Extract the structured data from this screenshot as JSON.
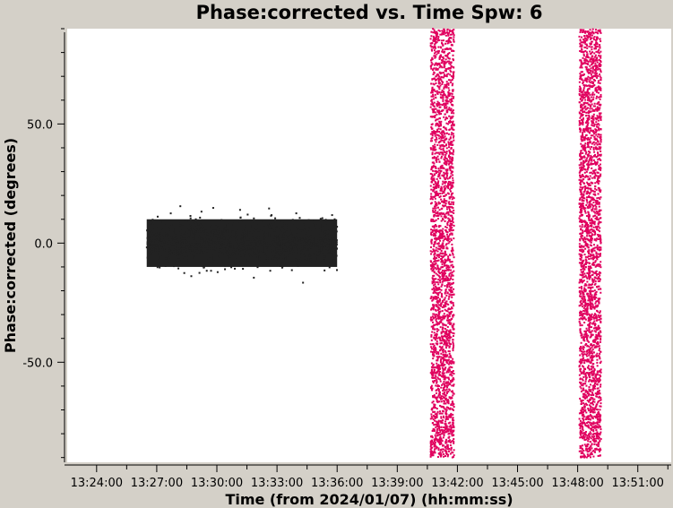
{
  "chart_data": {
    "type": "scatter",
    "title": "Phase:corrected vs. Time Spw: 6",
    "xlabel": "Time (from 2024/01/07) (hh:mm:ss)",
    "ylabel": "Phase:corrected (degrees)",
    "x_ticks": [
      "13:24:00",
      "13:27:00",
      "13:30:00",
      "13:33:00",
      "13:36:00",
      "13:39:00",
      "13:42:00",
      "13:45:00",
      "13:48:00",
      "13:51:00"
    ],
    "y_ticks": [
      "-50.0",
      "0.0",
      "50.0"
    ],
    "xlim": [
      "13:22:32",
      "13:52:40"
    ],
    "ylim": [
      -92,
      90
    ],
    "grid": false,
    "series": [
      {
        "color": "#222222",
        "shape": "dense band",
        "x_range": [
          "13:26:30",
          "13:36:00"
        ],
        "y_core": [
          -10,
          10
        ],
        "y_extent": [
          -17,
          18
        ]
      },
      {
        "color": "#e0005e",
        "shape": "vertical stripe",
        "x_range": [
          "13:40:40",
          "13:41:50"
        ],
        "y_extent": [
          -90,
          90
        ]
      },
      {
        "color": "#e0005e",
        "shape": "vertical stripe",
        "x_range": [
          "13:48:05",
          "13:49:10"
        ],
        "y_extent": [
          -90,
          90
        ]
      }
    ]
  },
  "colors": {
    "frame_background": "#d4d0c8",
    "plot_background": "#ffffff",
    "axis": "#000000"
  }
}
